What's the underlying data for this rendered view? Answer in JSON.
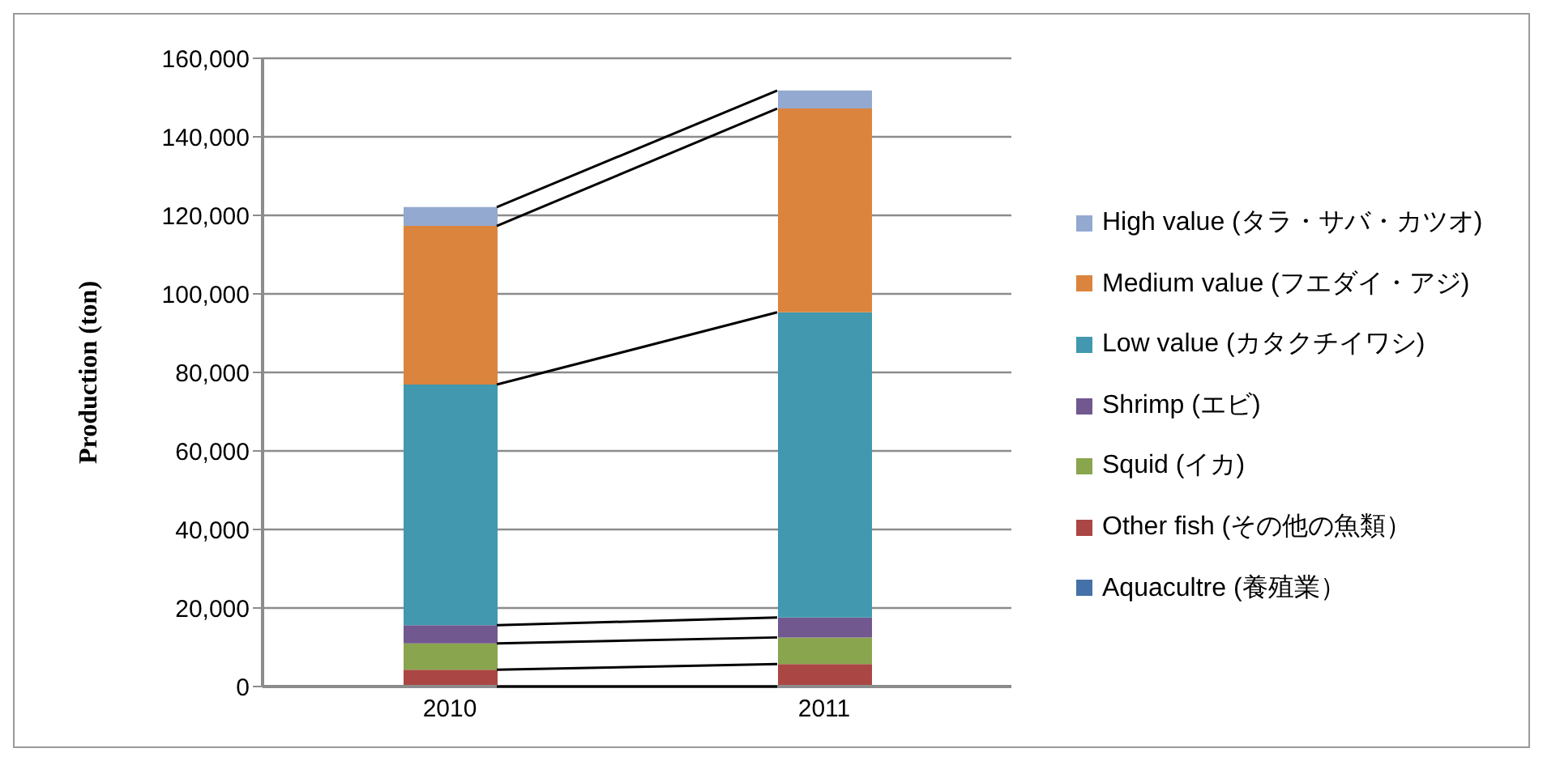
{
  "chart_data": {
    "type": "bar",
    "stacked": true,
    "categories": [
      "2010",
      "2011"
    ],
    "ylabel": "Production (ton)",
    "ylim": [
      0,
      160000
    ],
    "yticks": [
      0,
      {
        "value": 20000,
        "label": "20,000"
      },
      {
        "value": 40000,
        "label": "40,000"
      },
      {
        "value": 60000,
        "label": "60,000"
      },
      {
        "value": 80000,
        "label": "80,000"
      },
      {
        "value": 100000,
        "label": "100,000"
      },
      {
        "value": 120000,
        "label": "120,000"
      },
      {
        "value": 140000,
        "label": "140,000"
      },
      {
        "value": 160000,
        "label": "160,000"
      }
    ],
    "grid": "y",
    "legend": "right",
    "series": [
      {
        "name": "Aquacultre (養殖業）",
        "color": "#4472a8",
        "values": [
          null,
          null
        ]
      },
      {
        "name": "Other fish (その他の魚類）",
        "color": "#aa4744",
        "values": [
          4300,
          5700
        ]
      },
      {
        "name": "Squid (イカ)",
        "color": "#89a54e",
        "values": [
          6700,
          6800
        ]
      },
      {
        "name": "Shrimp (エビ)",
        "color": "#71588f",
        "values": [
          4600,
          5100
        ]
      },
      {
        "name": "Low value (カタクチイワシ)",
        "color": "#4198af",
        "values": [
          61300,
          77700
        ]
      },
      {
        "name": "Medium value (フエダイ・アジ)",
        "color": "#db843d",
        "values": [
          40400,
          51900
        ]
      },
      {
        "name": "High value (タラ・サバ・カツオ)",
        "color": "#93a9cf",
        "values": [
          4800,
          4600
        ]
      }
    ]
  }
}
